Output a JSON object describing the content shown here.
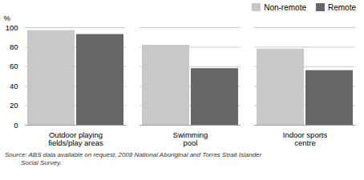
{
  "chart_data": {
    "type": "bar",
    "categories": [
      "Outdoor playing\nfields/play areas",
      "Swimming\npool",
      "Indoor sports\ncentre"
    ],
    "series": [
      {
        "name": "Non-remote",
        "color": "#c8c8c8",
        "values": [
          97,
          82,
          78
        ]
      },
      {
        "name": "Remote",
        "color": "#666666",
        "values": [
          93,
          58,
          56
        ]
      }
    ],
    "ylabel": "%",
    "ylim": [
      0,
      100
    ],
    "yticks": [
      0,
      20,
      40,
      60,
      80,
      100
    ],
    "grid": true,
    "legend": "upper right",
    "annotations": [
      "Source: ABS data available on request, 2008 National Aboriginal and Torres Strait Islander",
      "         Social Survey."
    ]
  }
}
